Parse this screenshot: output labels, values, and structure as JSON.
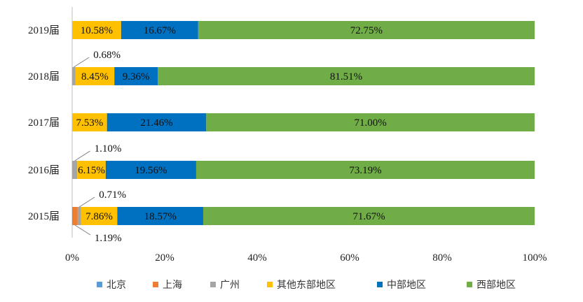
{
  "chart_data": {
    "type": "bar",
    "orientation": "horizontal",
    "stacked": "percent",
    "categories": [
      "2019届",
      "2018届",
      "2017届",
      "2016届",
      "2015届"
    ],
    "xlim": [
      0,
      100
    ],
    "xticks": [
      "0%",
      "20%",
      "40%",
      "60%",
      "80%",
      "100%"
    ],
    "grid": false,
    "legend_position": "bottom",
    "series": [
      {
        "name": "北京",
        "color": "#5B9BD5",
        "values": [
          0,
          0,
          0,
          0,
          0
        ]
      },
      {
        "name": "上海",
        "color": "#ED7D31",
        "values": [
          0,
          0,
          0,
          0,
          1.19
        ]
      },
      {
        "name": "广州",
        "color": "#A5A5A5",
        "values": [
          0,
          0.68,
          0,
          1.1,
          0.71
        ]
      },
      {
        "name": "其他东部地区",
        "color": "#FFC000",
        "values": [
          10.58,
          8.45,
          7.53,
          6.15,
          7.86
        ]
      },
      {
        "name": "中部地区",
        "color": "#0070C0",
        "values": [
          16.67,
          9.36,
          21.46,
          19.56,
          18.57
        ]
      },
      {
        "name": "西部地区",
        "color": "#70AD47",
        "values": [
          72.75,
          81.51,
          71.0,
          73.19,
          71.67
        ]
      }
    ],
    "data_labels": [
      [
        "",
        "",
        "",
        "10.58%",
        "16.67%",
        "72.75%"
      ],
      [
        "",
        "",
        "0.68%",
        "8.45%",
        "9.36%",
        "81.51%"
      ],
      [
        "",
        "",
        "",
        "7.53%",
        "21.46%",
        "71.00%"
      ],
      [
        "",
        "",
        "1.10%",
        "6.15%",
        "19.56%",
        "73.19%"
      ],
      [
        "",
        "1.19%",
        "0.71%",
        "7.86%",
        "18.57%",
        "71.67%"
      ]
    ]
  }
}
